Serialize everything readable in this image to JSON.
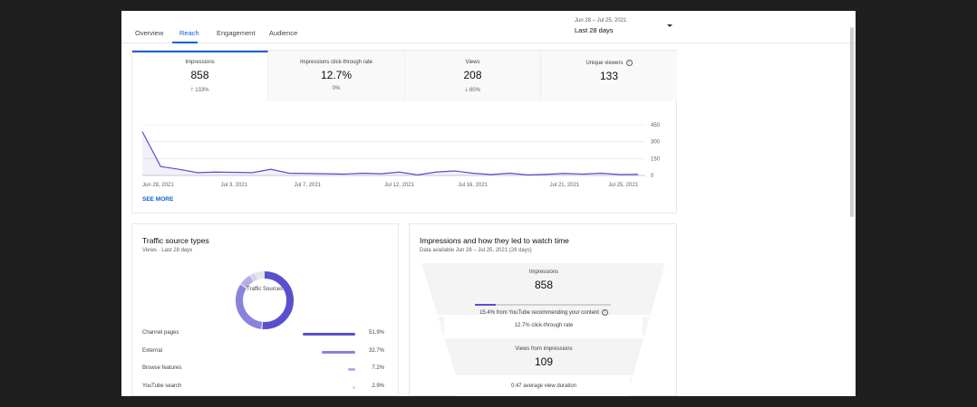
{
  "tabs": [
    {
      "label": "Overview"
    },
    {
      "label": "Reach"
    },
    {
      "label": "Engagement"
    },
    {
      "label": "Audience"
    }
  ],
  "active_tab": "Reach",
  "date_range": {
    "dates": "Jun 28 – Jul 25, 2021",
    "label": "Last 28 days"
  },
  "metrics": [
    {
      "label": "Impressions",
      "value": "858",
      "delta": "133%",
      "direction": "up"
    },
    {
      "label": "Impressions click-through rate",
      "value": "12.7%",
      "delta": "0%",
      "direction": "none"
    },
    {
      "label": "Views",
      "value": "208",
      "delta": "60%",
      "direction": "down"
    },
    {
      "label": "Unique viewers",
      "value": "133",
      "delta": "",
      "direction": "none"
    }
  ],
  "see_more": "SEE MORE",
  "chart_data": {
    "type": "area",
    "x": [
      "Jun 28",
      "Jun 29",
      "Jun 30",
      "Jul 1",
      "Jul 2",
      "Jul 3",
      "Jul 4",
      "Jul 5",
      "Jul 6",
      "Jul 7",
      "Jul 8",
      "Jul 9",
      "Jul 10",
      "Jul 11",
      "Jul 12",
      "Jul 13",
      "Jul 14",
      "Jul 15",
      "Jul 16",
      "Jul 17",
      "Jul 18",
      "Jul 19",
      "Jul 20",
      "Jul 21",
      "Jul 22",
      "Jul 23",
      "Jul 24",
      "Jul 25"
    ],
    "x_tick_labels": [
      "Jun 28, 2021",
      "Jul 3, 2021",
      "Jul 7, 2021",
      "Jul 12, 2021",
      "Jul 16, 2021",
      "Jul 21, 2021",
      "Jul 25, 2021"
    ],
    "x_tick_index": [
      0,
      5,
      9,
      14,
      18,
      23,
      27
    ],
    "series": [
      {
        "values": [
          390,
          80,
          55,
          25,
          30,
          28,
          25,
          55,
          20,
          18,
          15,
          12,
          20,
          15,
          30,
          5,
          30,
          40,
          20,
          8,
          20,
          5,
          10,
          18,
          12,
          20,
          8,
          10
        ]
      }
    ],
    "yticks": [
      0,
      150,
      300,
      450
    ],
    "ylim": [
      0,
      450
    ],
    "grid": true,
    "color": "#5a4fcf"
  },
  "traffic": {
    "title": "Traffic source types",
    "subtitle": "Views · Last 28 days",
    "donut_label": "Traffic Sources",
    "sources": [
      {
        "name": "Channel pages",
        "pct": "51.9%",
        "value": 51.9
      },
      {
        "name": "External",
        "pct": "32.7%",
        "value": 32.7
      },
      {
        "name": "Browse features",
        "pct": "7.2%",
        "value": 7.2
      },
      {
        "name": "YouTube search",
        "pct": "2.9%",
        "value": 2.9
      }
    ]
  },
  "funnel": {
    "title": "Impressions and how they led to watch time",
    "subtitle": "Data available Jun 28 – Jul 25, 2021 (28 days)",
    "impressions_label": "Impressions",
    "impressions_value": "858",
    "recommend_text": "15.4% from YouTube recommending your content",
    "recommend_fraction": 0.154,
    "ctr_text": "12.7% click-through rate",
    "views_label": "Views from impressions",
    "views_value": "109",
    "duration_text": "0:47 average view duration"
  },
  "colors": {
    "accent": "#065fd4",
    "series": "#5a4fcf",
    "up": "#0b8043",
    "down": "#d32f2f"
  }
}
